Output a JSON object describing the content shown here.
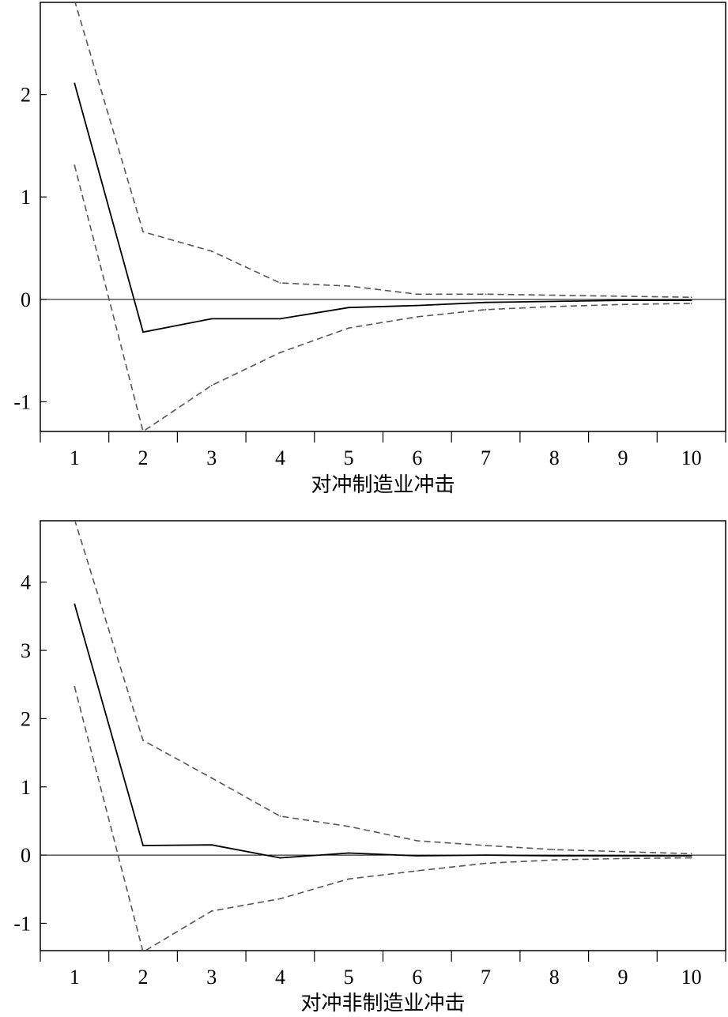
{
  "chart_data": [
    {
      "type": "line",
      "title": "",
      "xlabel": "对冲制造业冲击",
      "ylabel": "",
      "x": [
        1,
        2,
        3,
        4,
        5,
        6,
        7,
        8,
        9,
        10
      ],
      "x_tick_labels": [
        "1",
        "2",
        "3",
        "4",
        "5",
        "6",
        "7",
        "8",
        "9",
        "10"
      ],
      "xlim": [
        0.5,
        10.5
      ],
      "ylim": [
        -1.29,
        2.9
      ],
      "y_ticks": [
        -1,
        0,
        1,
        2
      ],
      "y_tick_labels": [
        "-1",
        "0",
        "1",
        "2"
      ],
      "zero_line": true,
      "grid": false,
      "legend": "none",
      "series": [
        {
          "style": "solid",
          "color": "#000000",
          "values": [
            2.11,
            -0.32,
            -0.19,
            -0.19,
            -0.08,
            -0.06,
            -0.03,
            -0.02,
            -0.01,
            -0.01
          ]
        },
        {
          "style": "dashed",
          "color": "#555555",
          "values": [
            2.92,
            0.66,
            0.47,
            0.16,
            0.13,
            0.05,
            0.05,
            0.04,
            0.03,
            0.02
          ]
        },
        {
          "style": "dashed",
          "color": "#555555",
          "values": [
            1.31,
            -1.29,
            -0.84,
            -0.52,
            -0.28,
            -0.17,
            -0.1,
            -0.07,
            -0.05,
            -0.04
          ]
        }
      ]
    },
    {
      "type": "line",
      "title": "",
      "xlabel": "对冲非制造业冲击",
      "ylabel": "",
      "x": [
        1,
        2,
        3,
        4,
        5,
        6,
        7,
        8,
        9,
        10
      ],
      "x_tick_labels": [
        "1",
        "2",
        "3",
        "4",
        "5",
        "6",
        "7",
        "8",
        "9",
        "10"
      ],
      "xlim": [
        0.5,
        10.5
      ],
      "ylim": [
        -1.4,
        4.9
      ],
      "y_ticks": [
        -1,
        0,
        1,
        2,
        3,
        4
      ],
      "y_tick_labels": [
        "-1",
        "0",
        "1",
        "2",
        "3",
        "4"
      ],
      "zero_line": true,
      "grid": false,
      "legend": "none",
      "series": [
        {
          "style": "solid",
          "color": "#000000",
          "values": [
            3.68,
            0.14,
            0.15,
            -0.04,
            0.03,
            -0.01,
            0.0,
            -0.01,
            -0.01,
            -0.01
          ]
        },
        {
          "style": "dashed",
          "color": "#555555",
          "values": [
            4.92,
            1.68,
            1.13,
            0.57,
            0.42,
            0.21,
            0.14,
            0.08,
            0.05,
            0.02
          ]
        },
        {
          "style": "dashed",
          "color": "#555555",
          "values": [
            2.47,
            -1.42,
            -0.82,
            -0.64,
            -0.35,
            -0.23,
            -0.12,
            -0.07,
            -0.05,
            -0.04
          ]
        }
      ]
    }
  ]
}
